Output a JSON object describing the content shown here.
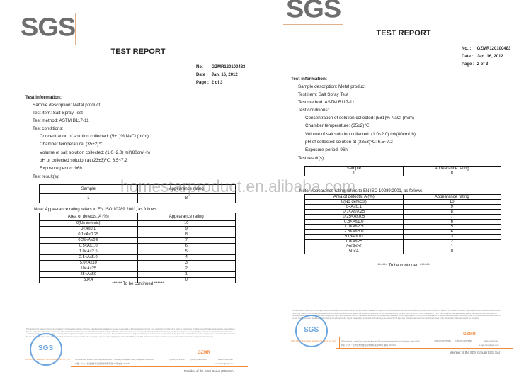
{
  "logo": "SGS",
  "title": "TEST REPORT",
  "meta": [
    {
      "label": "No.  :",
      "value": "GZMR120100483"
    },
    {
      "label": "Date :",
      "value": "Jan. 16, 2012"
    },
    {
      "label": "Page :",
      "value": "2 of  3"
    }
  ],
  "info": {
    "heading": "Test information:",
    "sample_description": "Sample description: Metal product",
    "test_item": "Test item: Salt Spray Test",
    "test_method": "Test method: ASTM B117-11",
    "conditions_heading": "Test conditions:",
    "conditions": [
      "Concentration of solution collected: (5±1)% NaCl (m/m)",
      "Chamber temperature: (35±2)℃",
      "Volume of salt solution collected: (1.0~2.0) ml/(80cm²·h)",
      "pH of collected solution at (23±3)℃: 6.5~7.2",
      "Exposure period: 96h"
    ],
    "results_heading": "Test result(s):"
  },
  "results_table": {
    "headers": [
      "Sample",
      "Appearance rating"
    ],
    "rows": [
      [
        "1",
        "8"
      ]
    ]
  },
  "note": "Note:  Appearance rating refers to EN ISO 10289:2001, as follows:",
  "rating_table": {
    "headers": [
      "Area of defects, A (%)",
      "Appearance rating"
    ],
    "rows": [
      [
        "0(No defects)",
        "10"
      ],
      [
        "0<A≤0.1",
        "9"
      ],
      [
        "0.1<A≤0.25",
        "8"
      ],
      [
        "0.25<A≤0.5",
        "7"
      ],
      [
        "0.5<A≤1.0",
        "6"
      ],
      [
        "1.0<A≤2.5",
        "5"
      ],
      [
        "2.5<A≤5.0",
        "4"
      ],
      [
        "5.0<A≤10",
        "3"
      ],
      [
        "10<A≤25",
        "2"
      ],
      [
        "25<A≤50",
        "1"
      ],
      [
        "50<A",
        "0"
      ]
    ]
  },
  "continued": "****** To be continued ******",
  "footer": {
    "disclaimer": "This document is issued by the Company subject to its General Conditions of Service printed overleaf, available on request or accessible at http://www.sgs.com/terms_and_conditions.htm. Attention is drawn to the limitation of liability, indemnification and jurisdiction issues defined therein. Any holder of this document is advised that information contained hereon reflects the Company's findings at the time of its intervention only and within the limits of Client's instructions, if any. The Company's sole responsibility is to its Client and this document does not exonerate parties to a transaction from exercising all their rights and obligations under the transaction documents. Any unauthorized alteration, forgery or falsification of the content or appearance of this document is unlawful and offenders may be prosecuted to the fullest extent of the law. Unless otherwise stated the results shown in this test report refer only to the sample(s) tested and such sample(s) are retained for 30 days only. This document cannot be reproduced except in full, without prior written approval of the Company.",
    "stamp": "SGS",
    "code": "GZMR",
    "company": "SGS-CSTC Standards Technical Services Co., Ltd.",
    "address_en": "198 Kezhu Road, Scientech Park Guangzhou Economic & Technology Development District, Guangzhou, China 510663",
    "address_cn": "中国・广州・经济技术开发区科学城科珠路198号  邮编: 510663",
    "phone": "t (86-20) 82155555",
    "fax": "f (86-20) 82075080",
    "web": "www.cn.sgs.com",
    "email": "e sgs.china@sgs.com",
    "member": "Member of the SGS Group (SGS SA)"
  },
  "watermark": "homestarproduct.en.alibaba.com"
}
